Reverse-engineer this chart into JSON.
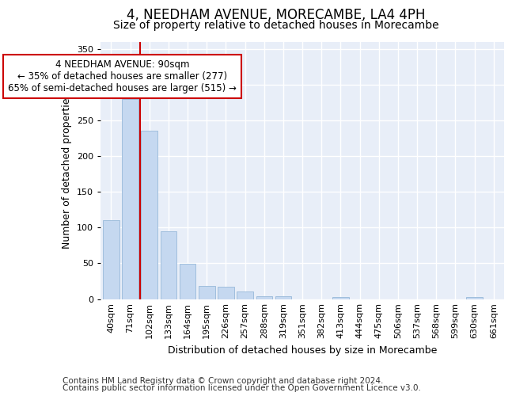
{
  "title": "4, NEEDHAM AVENUE, MORECAMBE, LA4 4PH",
  "subtitle": "Size of property relative to detached houses in Morecambe",
  "xlabel": "Distribution of detached houses by size in Morecambe",
  "ylabel": "Number of detached properties",
  "categories": [
    "40sqm",
    "71sqm",
    "102sqm",
    "133sqm",
    "164sqm",
    "195sqm",
    "226sqm",
    "257sqm",
    "288sqm",
    "319sqm",
    "351sqm",
    "382sqm",
    "413sqm",
    "444sqm",
    "475sqm",
    "506sqm",
    "537sqm",
    "568sqm",
    "599sqm",
    "630sqm",
    "661sqm"
  ],
  "values": [
    110,
    280,
    235,
    95,
    49,
    18,
    17,
    10,
    4,
    4,
    0,
    0,
    3,
    0,
    0,
    0,
    0,
    0,
    0,
    3,
    0
  ],
  "bar_color": "#c5d8f0",
  "bar_edgecolor": "#a0bedd",
  "vline_x": 1.5,
  "vline_color": "#cc0000",
  "annotation_text": "4 NEEDHAM AVENUE: 90sqm\n← 35% of detached houses are smaller (277)\n65% of semi-detached houses are larger (515) →",
  "annotation_box_edgecolor": "#cc0000",
  "annotation_box_facecolor": "#ffffff",
  "ylim": [
    0,
    360
  ],
  "yticks": [
    0,
    50,
    100,
    150,
    200,
    250,
    300,
    350
  ],
  "footer1": "Contains HM Land Registry data © Crown copyright and database right 2024.",
  "footer2": "Contains public sector information licensed under the Open Government Licence v3.0.",
  "fig_bg_color": "#ffffff",
  "plot_bg_color": "#e8eef8",
  "grid_color": "#ffffff",
  "title_fontsize": 12,
  "subtitle_fontsize": 10,
  "axis_label_fontsize": 9,
  "tick_fontsize": 8,
  "footer_fontsize": 7.5,
  "annotation_fontsize": 8.5
}
